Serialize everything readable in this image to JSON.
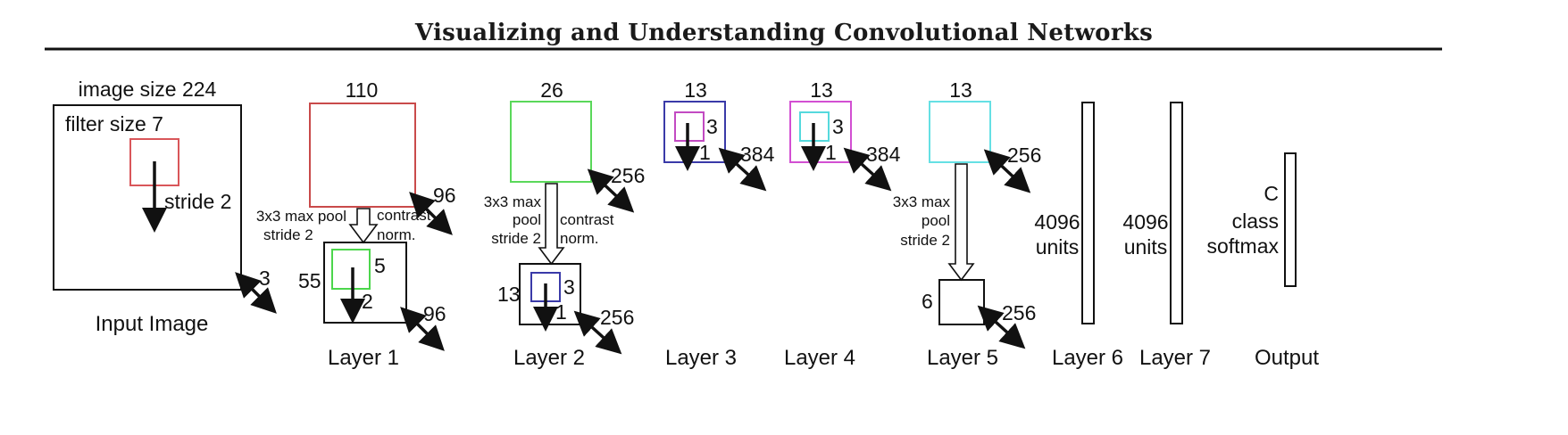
{
  "title": "Visualizing and Understanding Convolutional Networks",
  "colors": {
    "filter1": "#d9565a",
    "layer1": "#c94a4a",
    "filter2": "#4cd64c",
    "layer2": "#5ad85a",
    "filter3": "#3a3aa8",
    "layer3": "#3a3aa8",
    "filter4": "#c24ac2",
    "layer4": "#d24fd2",
    "filter5": "#55d9dd",
    "layer5": "#65e0e4"
  },
  "input": {
    "size_label": "image size 224",
    "filter_label": "filter size 7",
    "stride_label": "stride 2",
    "depth": "3",
    "caption": "Input Image"
  },
  "layer1": {
    "size": "110",
    "depth": "96",
    "pool_label_1": "3x3 max pool",
    "pool_label_2": "stride 2",
    "norm_label_1": "contrast",
    "norm_label_2": "norm.",
    "pooled_size": "55",
    "filter_size": "5",
    "stride": "2",
    "pooled_depth": "96",
    "caption": "Layer 1"
  },
  "layer2": {
    "size": "26",
    "depth": "256",
    "pool_label_1": "3x3 max",
    "pool_label_2": "pool",
    "pool_label_3": "stride 2",
    "norm_label_1": "contrast",
    "norm_label_2": "norm.",
    "pooled_size": "13",
    "filter_size": "3",
    "stride": "1",
    "pooled_depth": "256",
    "caption": "Layer 2"
  },
  "layer3": {
    "size": "13",
    "filter_size": "3",
    "stride": "1",
    "depth": "384",
    "caption": "Layer 3"
  },
  "layer4": {
    "size": "13",
    "filter_size": "3",
    "stride": "1",
    "depth": "384",
    "caption": "Layer 4"
  },
  "layer5": {
    "size": "13",
    "depth": "256",
    "pool_label_1": "3x3 max",
    "pool_label_2": "pool",
    "pool_label_3": "stride 2",
    "pooled_size": "6",
    "pooled_depth": "256",
    "caption": "Layer 5"
  },
  "layer6": {
    "units_1": "4096",
    "units_2": "units",
    "caption": "Layer 6"
  },
  "layer7": {
    "units_1": "4096",
    "units_2": "units",
    "caption": "Layer 7"
  },
  "output": {
    "line_1": "C",
    "line_2": "class",
    "line_3": "softmax",
    "caption": "Output"
  }
}
